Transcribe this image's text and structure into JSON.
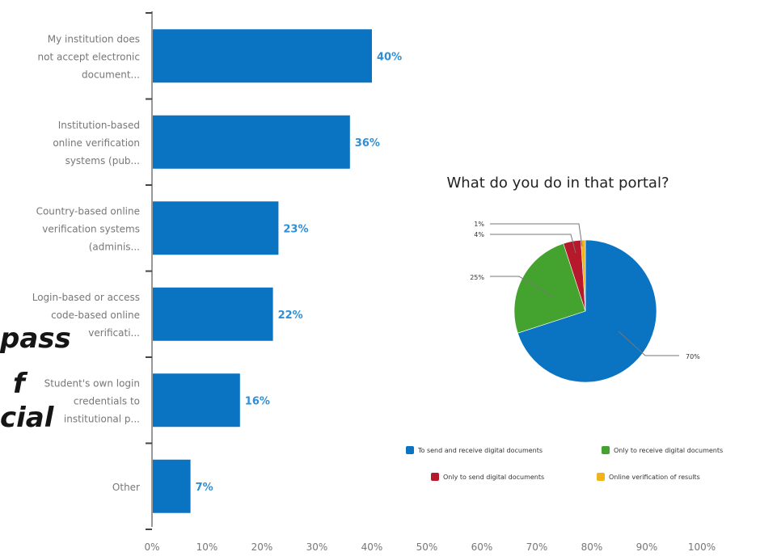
{
  "background_text": [
    "pass",
    "f",
    "cial"
  ],
  "chart_data": [
    {
      "type": "bar",
      "orientation": "horizontal",
      "categories": [
        [
          "My institution does",
          "not accept electronic",
          "document..."
        ],
        [
          "Institution-based",
          "online verification",
          "systems (pub..."
        ],
        [
          "Country-based online",
          "verification systems",
          "(adminis..."
        ],
        [
          "Login-based or access",
          "code-based online",
          "verificati..."
        ],
        [
          "Student's own login",
          "credentials to",
          "institutional p..."
        ],
        [
          "Other"
        ]
      ],
      "values": [
        40,
        36,
        23,
        22,
        16,
        7
      ],
      "value_labels": [
        "40%",
        "36%",
        "23%",
        "22%",
        "16%",
        "7%"
      ],
      "x_ticks": [
        "0%",
        "10%",
        "20%",
        "30%",
        "40%",
        "50%",
        "60%",
        "70%",
        "80%",
        "90%",
        "100%"
      ],
      "xlim": [
        0,
        110
      ],
      "bar_color": "#0a73c2",
      "label_color": "#2f8fd6",
      "grid": false
    },
    {
      "type": "pie",
      "title": "What do you do in that portal?",
      "slices": [
        {
          "label": "To send and receive digital documents",
          "value": 70,
          "display": "70%",
          "color": "#0a73c2"
        },
        {
          "label": "Only to receive digital documents",
          "value": 25,
          "display": "25%",
          "color": "#43a32e"
        },
        {
          "label": "Only to send digital documents",
          "value": 4,
          "display": "4%",
          "color": "#b5192b"
        },
        {
          "label": "Online verification of results",
          "value": 1,
          "display": "1%",
          "color": "#f0b419"
        }
      ],
      "legend_placement": "bottom"
    }
  ]
}
